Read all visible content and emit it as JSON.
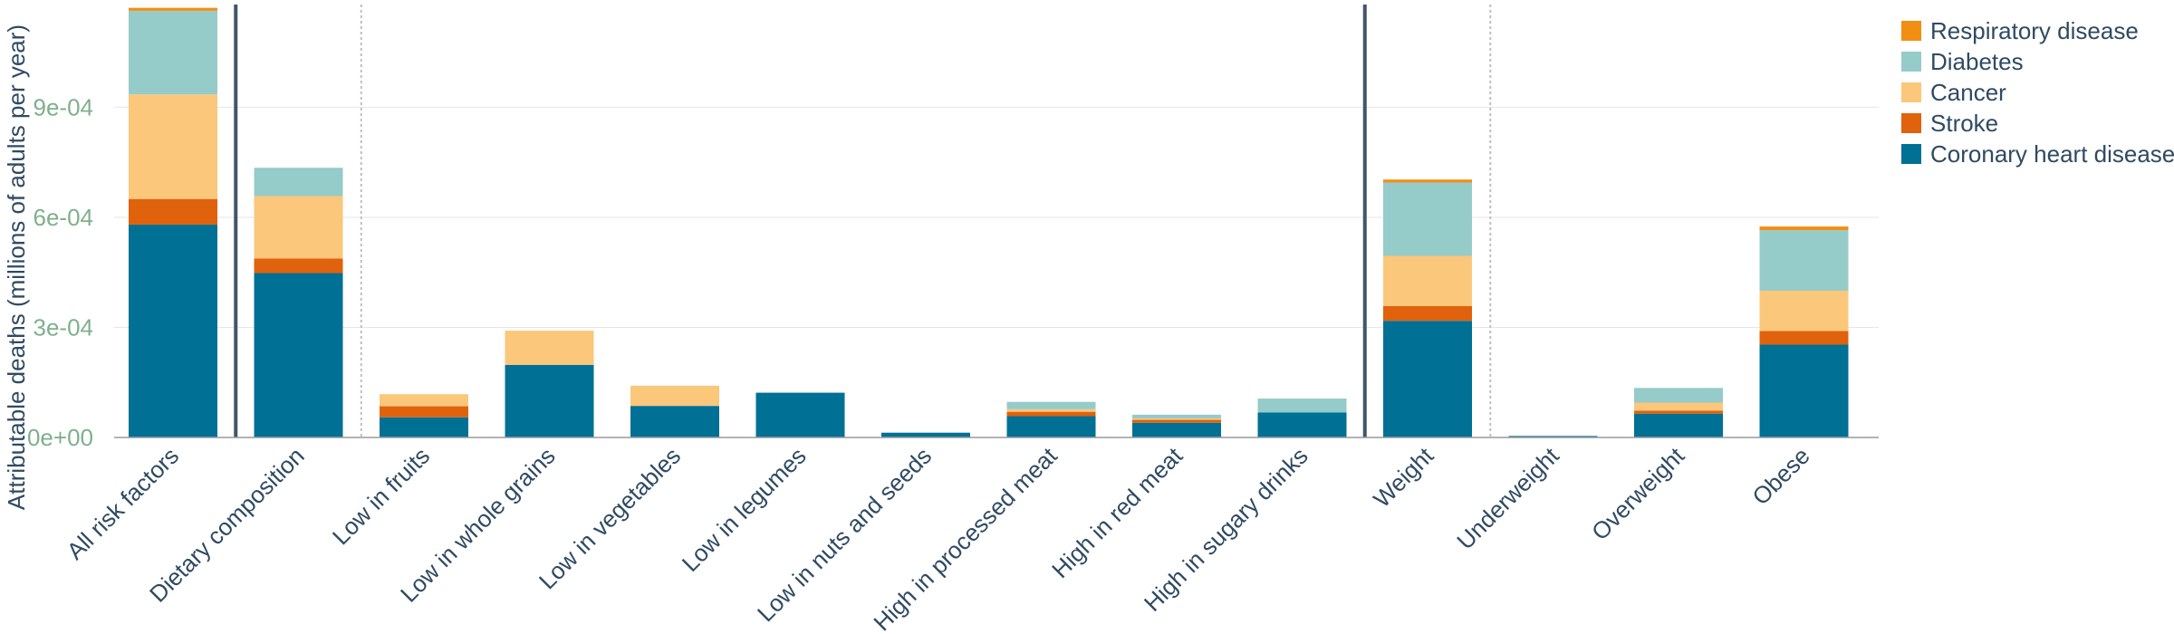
{
  "chart_data": {
    "type": "bar",
    "stacked": true,
    "title": "",
    "xlabel": "",
    "ylabel": "Attributable deaths (millions of adults per year)",
    "ylim": [
      0,
      0.00118
    ],
    "yticks": [
      0,
      0.0003,
      0.0006,
      0.0009
    ],
    "ytick_labels": [
      "0e+00",
      "3e-04",
      "6e-04",
      "9e-04"
    ],
    "grid": true,
    "legend_position": "top-right",
    "categories": [
      "All risk factors",
      "Dietary composition",
      "Low in fruits",
      "Low in whole grains",
      "Low in vegetables",
      "Low in legumes",
      "Low in nuts and seeds",
      "High in processed meat",
      "High in red meat",
      "High in sugary drinks",
      "Weight",
      "Underweight",
      "Overweight",
      "Obese"
    ],
    "separators": [
      {
        "after_index": 0,
        "style": "solid"
      },
      {
        "after_index": 1,
        "style": "dotted"
      },
      {
        "after_index": 9,
        "style": "solid"
      },
      {
        "after_index": 10,
        "style": "dotted"
      }
    ],
    "series": [
      {
        "name": "Coronary heart disease",
        "color": "#007095",
        "values": [
          0.00058,
          0.000448,
          5.5e-05,
          0.000198,
          8.6e-05,
          0.000122,
          1.3e-05,
          5.8e-05,
          4e-05,
          6.8e-05,
          0.000318,
          4e-06,
          6.5e-05,
          0.000253
        ]
      },
      {
        "name": "Stroke",
        "color": "#e0620d",
        "values": [
          7e-05,
          4e-05,
          3e-05,
          0.0,
          0.0,
          0.0,
          0.0,
          1.2e-05,
          8e-06,
          0.0,
          4e-05,
          0.0,
          8e-06,
          3.7e-05
        ]
      },
      {
        "name": "Cancer",
        "color": "#fbc77b",
        "values": [
          0.000285,
          0.00017,
          3.3e-05,
          9.3e-05,
          5.5e-05,
          0.0,
          0.0,
          7e-06,
          4e-06,
          0.0,
          0.000137,
          0.0,
          2.2e-05,
          0.00011
        ]
      },
      {
        "name": "Diabetes",
        "color": "#95cbc9",
        "values": [
          0.000228,
          7.7e-05,
          0.0,
          0.0,
          0.0,
          0.0,
          0.0,
          2e-05,
          1e-05,
          3.8e-05,
          0.0002,
          0.0,
          4e-05,
          0.000165
        ]
      },
      {
        "name": "Respiratory disease",
        "color": "#f28e13",
        "values": [
          8e-06,
          0.0,
          0.0,
          0.0,
          0.0,
          0.0,
          0.0,
          0.0,
          0.0,
          0.0,
          8e-06,
          0.0,
          0.0,
          1e-05
        ]
      }
    ],
    "legend_order": [
      "Respiratory disease",
      "Diabetes",
      "Cancer",
      "Stroke",
      "Coronary heart disease"
    ]
  }
}
